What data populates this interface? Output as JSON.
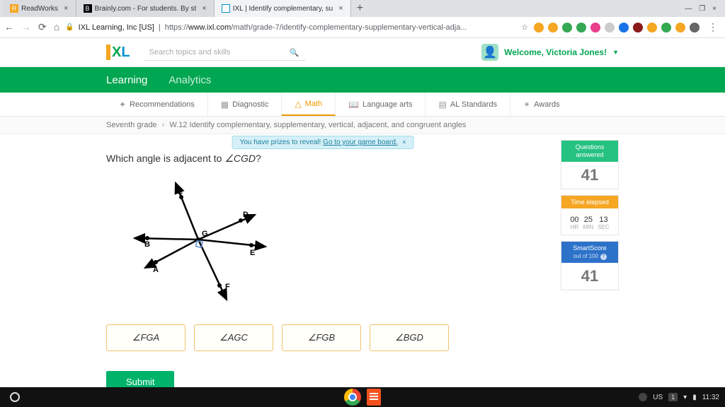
{
  "tabs": [
    {
      "title": "ReadWorks",
      "favicon_bg": "#f5a623",
      "favicon_text": "R"
    },
    {
      "title": "Brainly.com - For students. By st",
      "favicon_bg": "#000",
      "favicon_text": "B"
    },
    {
      "title": "IXL | Identify complementary, su",
      "favicon_bg": "#fff",
      "favicon_text": "⎕",
      "active": true
    }
  ],
  "addr": {
    "host": "IXL Learning, Inc [US]",
    "url_prefix": "https://",
    "url_domain": "www.ixl.com",
    "url_path": "/math/grade-7/identify-complementary-supplementary-vertical-adja..."
  },
  "ext_colors": [
    "#f5a623",
    "#f5a623",
    "#34a853",
    "#34a853",
    "#e83e8c",
    "#ccc",
    "#1a73e8",
    "#8b1a1a",
    "#f5a623",
    "#34a853",
    "#f5a623",
    "#666"
  ],
  "search_placeholder": "Search topics and skills",
  "welcome_text": "Welcome, Victoria Jones!",
  "greenbar": {
    "learning": "Learning",
    "analytics": "Analytics"
  },
  "subnav": {
    "recommendations": "Recommendations",
    "diagnostic": "Diagnostic",
    "math": "Math",
    "language": "Language arts",
    "standards": "AL Standards",
    "awards": "Awards"
  },
  "crumb": {
    "grade": "Seventh grade",
    "skill": "W.12 Identify complementary, supplementary, vertical, adjacent, and congruent angles"
  },
  "prize": {
    "text": "You have prizes to reveal! ",
    "link": "Go to your game board."
  },
  "question_prefix": "Which angle is adjacent to ",
  "question_angle": "∠CGD",
  "question_suffix": "?",
  "diagram_labels": {
    "A": "A",
    "B": "B",
    "C": "C",
    "D": "D",
    "E": "E",
    "F": "F",
    "G": "G"
  },
  "choices": [
    "∠FGA",
    "∠AGC",
    "∠FGB",
    "∠BGD"
  ],
  "submit": "Submit",
  "sidebar": {
    "questions_label": "Questions answered",
    "questions_value": "41",
    "time_label": "Time elapsed",
    "hr": "00",
    "min": "25",
    "sec": "13",
    "hr_l": "HR",
    "min_l": "MIN",
    "sec_l": "SEC",
    "smart_label": "SmartScore",
    "smart_sub": "out of 100",
    "smart_value": "41"
  },
  "taskbar": {
    "lang": "US",
    "time": "11:32"
  }
}
